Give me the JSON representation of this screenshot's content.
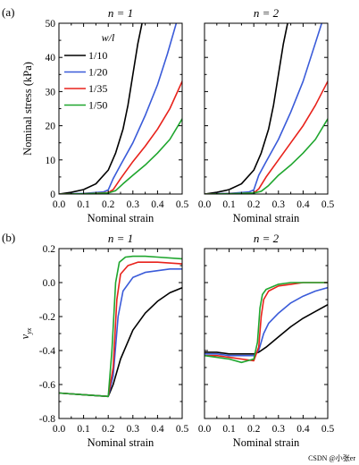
{
  "watermark": "CSDN @小张er",
  "colors": {
    "1/10": "#000000",
    "1/20": "#3a5bd9",
    "1/35": "#e8221b",
    "1/50": "#1fa62e"
  },
  "chart_data": [
    {
      "type": "line",
      "panel_label": "(a)",
      "title": "n = 1",
      "xlabel": "Nominal strain",
      "ylabel": "Nominal stress (kPa)",
      "xlim": [
        0,
        0.5
      ],
      "ylim": [
        0,
        50
      ],
      "xticks": [
        "0.0",
        "0.1",
        "0.2",
        "0.3",
        "0.4",
        "0.5"
      ],
      "yticks": [
        "0",
        "10",
        "20",
        "30",
        "40",
        "50"
      ],
      "legend": {
        "title": "w/l",
        "placement": "top-left"
      },
      "series": [
        {
          "name": "1/10",
          "color": "#000000",
          "x": [
            0,
            0.05,
            0.1,
            0.15,
            0.2,
            0.23,
            0.26,
            0.28,
            0.3,
            0.32,
            0.34
          ],
          "y": [
            0,
            0.5,
            1.3,
            3.0,
            7.0,
            12.0,
            19.0,
            26.0,
            35.0,
            44.0,
            51.0
          ]
        },
        {
          "name": "1/20",
          "color": "#3a5bd9",
          "x": [
            0,
            0.1,
            0.18,
            0.2,
            0.22,
            0.25,
            0.3,
            0.35,
            0.4,
            0.44,
            0.48
          ],
          "y": [
            0,
            0.2,
            0.6,
            1.2,
            4.5,
            8.5,
            15.0,
            23.0,
            32.0,
            41.0,
            51.0
          ]
        },
        {
          "name": "1/35",
          "color": "#e8221b",
          "x": [
            0,
            0.1,
            0.2,
            0.22,
            0.25,
            0.3,
            0.35,
            0.4,
            0.45,
            0.5
          ],
          "y": [
            0,
            0.1,
            0.4,
            1.3,
            4.5,
            9.5,
            14.0,
            19.0,
            25.0,
            33.0
          ]
        },
        {
          "name": "1/50",
          "color": "#1fa62e",
          "x": [
            0,
            0.1,
            0.2,
            0.23,
            0.26,
            0.3,
            0.35,
            0.4,
            0.45,
            0.5
          ],
          "y": [
            0,
            0.1,
            0.3,
            1.0,
            3.0,
            5.5,
            8.5,
            12.0,
            16.0,
            22.0
          ]
        }
      ]
    },
    {
      "type": "line",
      "panel_label": "",
      "title": "n = 2",
      "xlabel": "Nominal strain",
      "ylabel": "",
      "xlim": [
        0,
        0.5
      ],
      "ylim": [
        0,
        50
      ],
      "xticks": [
        "0.0",
        "0.1",
        "0.2",
        "0.3",
        "0.4",
        "0.5"
      ],
      "yticks": [],
      "series": [
        {
          "name": "1/10",
          "color": "#000000",
          "x": [
            0,
            0.05,
            0.1,
            0.15,
            0.2,
            0.23,
            0.26,
            0.28,
            0.3,
            0.32,
            0.34
          ],
          "y": [
            0,
            0.5,
            1.3,
            3.0,
            7.0,
            12.0,
            19.0,
            26.0,
            35.0,
            44.0,
            51.0
          ]
        },
        {
          "name": "1/20",
          "color": "#3a5bd9",
          "x": [
            0,
            0.1,
            0.18,
            0.2,
            0.22,
            0.25,
            0.3,
            0.35,
            0.4,
            0.44,
            0.48
          ],
          "y": [
            0,
            0.2,
            0.6,
            1.2,
            5.5,
            9.5,
            16.0,
            24.0,
            33.0,
            42.0,
            51.0
          ]
        },
        {
          "name": "1/35",
          "color": "#e8221b",
          "x": [
            0,
            0.1,
            0.2,
            0.22,
            0.25,
            0.3,
            0.35,
            0.4,
            0.45,
            0.5
          ],
          "y": [
            0,
            0.1,
            0.3,
            1.5,
            5.0,
            10.0,
            15.0,
            20.0,
            26.0,
            33.0
          ]
        },
        {
          "name": "1/50",
          "color": "#1fa62e",
          "x": [
            0,
            0.1,
            0.2,
            0.23,
            0.26,
            0.3,
            0.35,
            0.4,
            0.45,
            0.5
          ],
          "y": [
            0,
            0.1,
            0.3,
            0.8,
            2.5,
            5.5,
            8.5,
            12.0,
            16.0,
            22.0
          ]
        }
      ]
    },
    {
      "type": "line",
      "panel_label": "(b)",
      "title": "n = 1",
      "xlabel": "Nominal strain",
      "ylabel": "ν_yx",
      "xlim": [
        0,
        0.5
      ],
      "ylim": [
        -0.8,
        0.2
      ],
      "xticks": [
        "0.0",
        "0.1",
        "0.2",
        "0.3",
        "0.4",
        "0.5"
      ],
      "yticks": [
        "0.2",
        "0.0",
        "-0.2",
        "-0.4",
        "-0.6",
        "-0.8"
      ],
      "series": [
        {
          "name": "1/10",
          "color": "#000000",
          "x": [
            0,
            0.1,
            0.2,
            0.22,
            0.25,
            0.3,
            0.35,
            0.4,
            0.45,
            0.5
          ],
          "y": [
            -0.65,
            -0.66,
            -0.67,
            -0.6,
            -0.45,
            -0.28,
            -0.18,
            -0.11,
            -0.06,
            -0.03
          ]
        },
        {
          "name": "1/20",
          "color": "#3a5bd9",
          "x": [
            0,
            0.1,
            0.2,
            0.22,
            0.24,
            0.26,
            0.3,
            0.35,
            0.4,
            0.45,
            0.5
          ],
          "y": [
            -0.65,
            -0.66,
            -0.67,
            -0.55,
            -0.2,
            -0.05,
            0.03,
            0.06,
            0.07,
            0.08,
            0.08
          ]
        },
        {
          "name": "1/35",
          "color": "#e8221b",
          "x": [
            0,
            0.1,
            0.2,
            0.22,
            0.235,
            0.25,
            0.28,
            0.32,
            0.4,
            0.5
          ],
          "y": [
            -0.65,
            -0.66,
            -0.67,
            -0.5,
            -0.1,
            0.05,
            0.1,
            0.12,
            0.12,
            0.11
          ]
        },
        {
          "name": "1/50",
          "color": "#1fa62e",
          "x": [
            0,
            0.1,
            0.2,
            0.215,
            0.23,
            0.245,
            0.27,
            0.3,
            0.35,
            0.4,
            0.5
          ],
          "y": [
            -0.65,
            -0.66,
            -0.67,
            -0.4,
            0.0,
            0.12,
            0.15,
            0.155,
            0.155,
            0.15,
            0.14
          ]
        }
      ]
    },
    {
      "type": "line",
      "panel_label": "",
      "title": "n = 2",
      "xlabel": "Nominal strain",
      "ylabel": "",
      "xlim": [
        0,
        0.5
      ],
      "ylim": [
        -0.8,
        0.2
      ],
      "xticks": [
        "0.0",
        "0.1",
        "0.2",
        "0.3",
        "0.4",
        "0.5"
      ],
      "yticks": [],
      "series": [
        {
          "name": "1/10",
          "color": "#000000",
          "x": [
            0,
            0.05,
            0.1,
            0.15,
            0.2,
            0.22,
            0.25,
            0.3,
            0.35,
            0.4,
            0.45,
            0.5
          ],
          "y": [
            -0.41,
            -0.41,
            -0.42,
            -0.42,
            -0.42,
            -0.41,
            -0.38,
            -0.32,
            -0.26,
            -0.21,
            -0.17,
            -0.13
          ]
        },
        {
          "name": "1/20",
          "color": "#3a5bd9",
          "x": [
            0,
            0.05,
            0.1,
            0.15,
            0.2,
            0.22,
            0.24,
            0.26,
            0.3,
            0.35,
            0.4,
            0.45,
            0.5
          ],
          "y": [
            -0.42,
            -0.42,
            -0.43,
            -0.43,
            -0.43,
            -0.4,
            -0.3,
            -0.24,
            -0.18,
            -0.12,
            -0.08,
            -0.05,
            -0.03
          ]
        },
        {
          "name": "1/35",
          "color": "#e8221b",
          "x": [
            0,
            0.05,
            0.1,
            0.15,
            0.2,
            0.22,
            0.23,
            0.24,
            0.26,
            0.3,
            0.35,
            0.4,
            0.5
          ],
          "y": [
            -0.43,
            -0.43,
            -0.44,
            -0.45,
            -0.46,
            -0.38,
            -0.2,
            -0.1,
            -0.05,
            -0.02,
            -0.01,
            0.0,
            0.0
          ]
        },
        {
          "name": "1/50",
          "color": "#1fa62e",
          "x": [
            0,
            0.05,
            0.1,
            0.15,
            0.2,
            0.215,
            0.225,
            0.235,
            0.25,
            0.3,
            0.35,
            0.4,
            0.5
          ],
          "y": [
            -0.43,
            -0.44,
            -0.45,
            -0.47,
            -0.45,
            -0.35,
            -0.15,
            -0.07,
            -0.04,
            -0.01,
            0.0,
            0.0,
            0.0
          ]
        }
      ]
    }
  ]
}
